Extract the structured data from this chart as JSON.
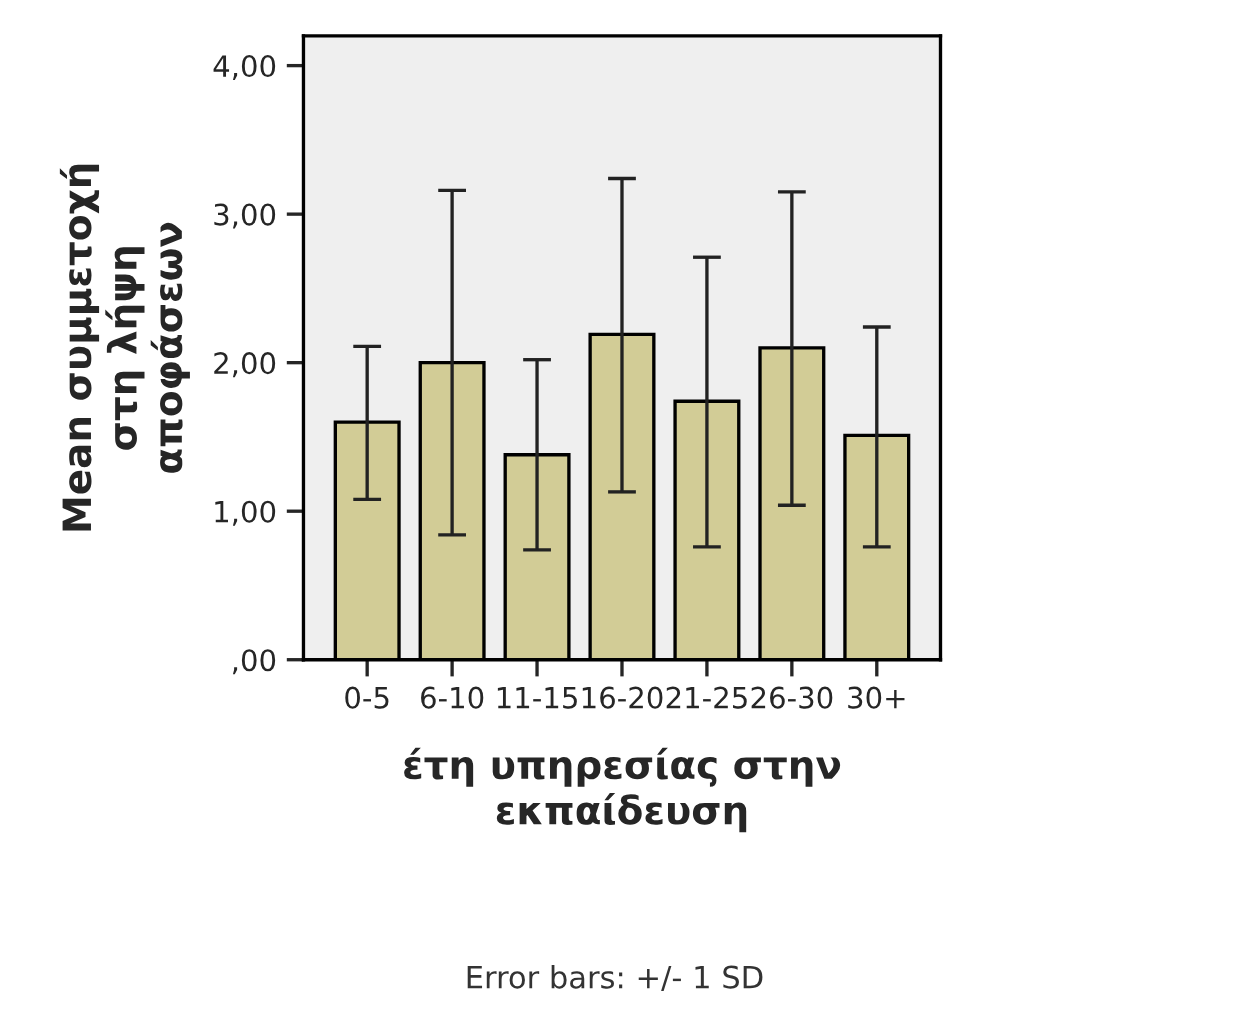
{
  "chart_data": {
    "type": "bar",
    "categories": [
      "0-5",
      "6-10",
      "11-15",
      "16-20",
      "21-25",
      "26-30",
      "30+"
    ],
    "values": [
      1.6,
      2.0,
      1.38,
      2.19,
      1.74,
      2.1,
      1.51
    ],
    "errors": [
      [
        1.08,
        2.11
      ],
      [
        0.84,
        3.16
      ],
      [
        0.74,
        2.02
      ],
      [
        1.13,
        3.24
      ],
      [
        0.76,
        2.71
      ],
      [
        1.04,
        3.15
      ],
      [
        0.76,
        2.24
      ]
    ],
    "color": "#d2cc96",
    "xlabel": "έτη υπηρεσίας στην\nεκπαίδευση",
    "ylabel": "Mean συμμετοχή\nστη λήψη\nαποφάσεων",
    "ylim": [
      0,
      4.2
    ],
    "yticks": [
      {
        "value": 0,
        "label": ",00"
      },
      {
        "value": 1,
        "label": "1,00"
      },
      {
        "value": 2,
        "label": "2,00"
      },
      {
        "value": 3,
        "label": "3,00"
      },
      {
        "value": 4,
        "label": "4,00"
      }
    ],
    "grid": false,
    "annotations": [
      "Error bars: +/- 1 SD"
    ]
  }
}
